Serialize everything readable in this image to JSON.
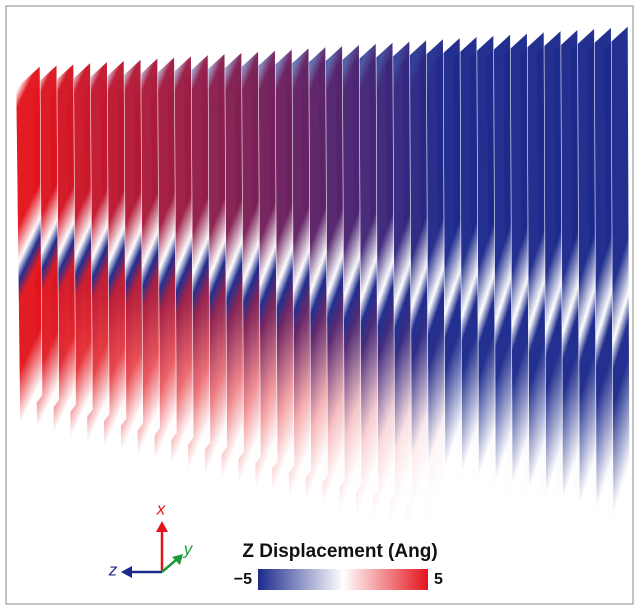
{
  "colorbar": {
    "title": "Z Displacement (Ang)",
    "ticks": [
      {
        "value": -5,
        "label": "−5"
      },
      5
    ],
    "colors": [
      "#1c2a8c",
      "#ffffff",
      "#e3141c"
    ]
  },
  "axes": {
    "x": "x",
    "y": "y",
    "z": "z"
  }
}
